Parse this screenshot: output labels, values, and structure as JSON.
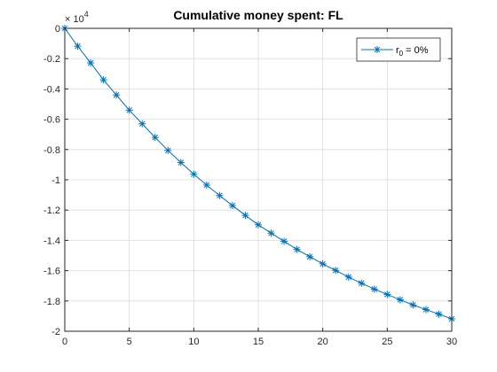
{
  "chart_data": {
    "type": "line",
    "title": "Cumulative money spent: FL",
    "xlabel": "",
    "ylabel": "",
    "xlim": [
      0,
      30
    ],
    "ylim": [
      -2,
      0
    ],
    "y_multiplier": {
      "base": "× 10",
      "exponent": "4"
    },
    "xticks": [
      0,
      5,
      10,
      15,
      20,
      25,
      30
    ],
    "xtick_labels": [
      "0",
      "5",
      "10",
      "15",
      "20",
      "25",
      "30"
    ],
    "yticks": [
      0,
      -0.2,
      -0.4,
      -0.6,
      -0.8,
      -1,
      -1.2,
      -1.4,
      -1.6,
      -1.8,
      -2
    ],
    "ytick_labels": [
      "0",
      "-0.2",
      "-0.4",
      "-0.6",
      "-0.8",
      "-1",
      "-1.2",
      "-1.4",
      "-1.6",
      "-1.8",
      "-2"
    ],
    "grid": true,
    "legend_position": "top-right",
    "series": [
      {
        "name": "r0 = 0%",
        "legend_label": {
          "main": "r",
          "sub": "0",
          "rest": " = 0%"
        },
        "color": "#0072BD",
        "marker": "asterisk",
        "x": [
          0,
          1,
          2,
          3,
          4,
          5,
          6,
          7,
          8,
          9,
          10,
          11,
          12,
          13,
          14,
          15,
          16,
          17,
          18,
          19,
          20,
          21,
          22,
          23,
          24,
          25,
          26,
          27,
          28,
          29,
          30
        ],
        "y": [
          0,
          -0.118,
          -0.228,
          -0.34,
          -0.44,
          -0.54,
          -0.63,
          -0.72,
          -0.806,
          -0.886,
          -0.963,
          -1.035,
          -1.104,
          -1.17,
          -1.235,
          -1.297,
          -1.352,
          -1.406,
          -1.46,
          -1.508,
          -1.555,
          -1.598,
          -1.642,
          -1.683,
          -1.722,
          -1.757,
          -1.792,
          -1.826,
          -1.857,
          -1.887,
          -1.918
        ]
      }
    ]
  }
}
